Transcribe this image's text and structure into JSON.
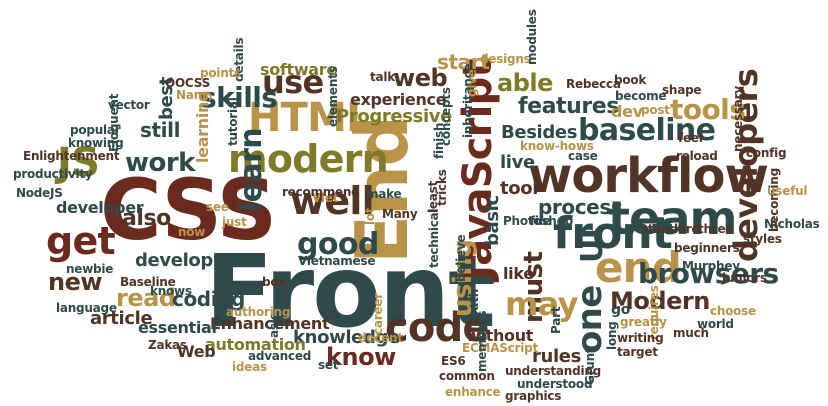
{
  "palette": {
    "red": "#6b2a1e",
    "olive": "#7e7a28",
    "teal": "#2e4a4b",
    "gold": "#b89348",
    "brown": "#523426"
  },
  "words": [
    {
      "text": "CSS",
      "color": "#6b2a1e",
      "vertical": false
    },
    {
      "text": "Front",
      "color": "#2e4a4b",
      "vertical": false
    },
    {
      "text": "End",
      "color": "#b89348",
      "vertical": true
    },
    {
      "text": "workflow",
      "color": "#523426",
      "vertical": false
    },
    {
      "text": "JavaScript",
      "color": "#6b2a1e",
      "vertical": true
    },
    {
      "text": "team",
      "color": "#2e4a4b",
      "vertical": false
    },
    {
      "text": "front",
      "color": "#2e4a4b",
      "vertical": false
    },
    {
      "text": "end",
      "color": "#b89348",
      "vertical": false
    },
    {
      "text": "baseline",
      "color": "#2e4a4b",
      "vertical": false
    },
    {
      "text": "modern",
      "color": "#7e7a28",
      "vertical": false
    },
    {
      "text": "HTML",
      "color": "#b89348",
      "vertical": false
    },
    {
      "text": "developers",
      "color": "#523426",
      "vertical": true
    },
    {
      "text": "JS",
      "color": "#7e7a28",
      "vertical": false
    },
    {
      "text": "well",
      "color": "#523426",
      "vertical": false
    },
    {
      "text": "get",
      "color": "#6b2a1e",
      "vertical": false
    },
    {
      "text": "code",
      "color": "#523426",
      "vertical": false
    },
    {
      "text": "one",
      "color": "#2e4a4b",
      "vertical": true
    },
    {
      "text": "must",
      "color": "#523426",
      "vertical": true
    },
    {
      "text": "may",
      "color": "#b89348",
      "vertical": false
    },
    {
      "text": "good",
      "color": "#2e4a4b",
      "vertical": false
    },
    {
      "text": "browsers",
      "color": "#2e4a4b",
      "vertical": false
    },
    {
      "text": "tools",
      "color": "#b89348",
      "vertical": false
    },
    {
      "text": "learn",
      "color": "#2e4a4b",
      "vertical": true
    },
    {
      "text": "use",
      "color": "#523426",
      "vertical": false
    },
    {
      "text": "skills",
      "color": "#2e4a4b",
      "vertical": false
    },
    {
      "text": "work",
      "color": "#2e4a4b",
      "vertical": false
    },
    {
      "text": "using",
      "color": "#b89348",
      "vertical": true
    },
    {
      "text": "UI",
      "color": "#2e4a4b",
      "vertical": true
    },
    {
      "text": "Modern",
      "color": "#523426",
      "vertical": false
    },
    {
      "text": "development",
      "color": "#2e4a4b",
      "vertical": false
    },
    {
      "text": "read",
      "color": "#b89348",
      "vertical": false
    },
    {
      "text": "new",
      "color": "#523426",
      "vertical": false
    },
    {
      "text": "also",
      "color": "#523426",
      "vertical": false
    },
    {
      "text": "coding",
      "color": "#2e4a4b",
      "vertical": false
    },
    {
      "text": "features",
      "color": "#2e4a4b",
      "vertical": false
    },
    {
      "text": "Progressive",
      "color": "#7e7a28",
      "vertical": false
    },
    {
      "text": "able",
      "color": "#7e7a28",
      "vertical": false
    },
    {
      "text": "web",
      "color": "#523426",
      "vertical": false
    },
    {
      "text": "experience",
      "color": "#523426",
      "vertical": false
    },
    {
      "text": "software",
      "color": "#7e7a28",
      "vertical": false
    },
    {
      "text": "know",
      "color": "#6b2a1e",
      "vertical": false
    },
    {
      "text": "knowledge",
      "color": "#2e4a4b",
      "vertical": false
    },
    {
      "text": "Enhancement",
      "color": "#523426",
      "vertical": false
    },
    {
      "text": "essential",
      "color": "#2e4a4b",
      "vertical": false
    },
    {
      "text": "automation",
      "color": "#7e7a28",
      "vertical": false
    },
    {
      "text": "article",
      "color": "#523426",
      "vertical": false
    },
    {
      "text": "Web",
      "color": "#523426",
      "vertical": false
    },
    {
      "text": "still",
      "color": "#2e4a4b",
      "vertical": false
    },
    {
      "text": "rules",
      "color": "#523426",
      "vertical": false
    },
    {
      "text": "without",
      "color": "#523426",
      "vertical": false
    },
    {
      "text": "process",
      "color": "#2e4a4b",
      "vertical": false
    },
    {
      "text": "Besides",
      "color": "#2e4a4b",
      "vertical": false
    },
    {
      "text": "developer",
      "color": "#2e4a4b",
      "vertical": false
    },
    {
      "text": "start",
      "color": "#b89348",
      "vertical": false
    },
    {
      "text": "best",
      "color": "#2e4a4b",
      "vertical": true
    },
    {
      "text": "learning",
      "color": "#b89348",
      "vertical": true
    },
    {
      "text": "tool",
      "color": "#523426",
      "vertical": false
    },
    {
      "text": "live",
      "color": "#2e4a4b",
      "vertical": false
    },
    {
      "text": "basic",
      "color": "#2e4a4b",
      "vertical": true
    },
    {
      "text": "like",
      "color": "#523426",
      "vertical": false
    },
    {
      "text": "dev",
      "color": "#b89348",
      "vertical": false
    },
    {
      "text": "standard",
      "color": "#523426",
      "vertical": false
    },
    {
      "text": "three",
      "color": "#523426",
      "vertical": false
    },
    {
      "text": "go",
      "color": "#2e4a4b",
      "vertical": false
    },
    {
      "text": "beginners",
      "color": "#523426",
      "vertical": false
    },
    {
      "text": "Murphey",
      "color": "#2e4a4b",
      "vertical": false
    },
    {
      "text": "styles",
      "color": "#523426",
      "vertical": false
    },
    {
      "text": "Nicholas",
      "color": "#2e4a4b",
      "vertical": false
    },
    {
      "text": "juniors",
      "color": "#523426",
      "vertical": false
    },
    {
      "text": "world",
      "color": "#2e4a4b",
      "vertical": false
    },
    {
      "text": "choose",
      "color": "#b89348",
      "vertical": false
    },
    {
      "text": "much",
      "color": "#523426",
      "vertical": false
    },
    {
      "text": "greatly",
      "color": "#b89348",
      "vertical": false
    },
    {
      "text": "requires",
      "color": "#b89348",
      "vertical": true
    },
    {
      "text": "writing",
      "color": "#523426",
      "vertical": false
    },
    {
      "text": "target",
      "color": "#523426",
      "vertical": false
    },
    {
      "text": "long",
      "color": "#2e4a4b",
      "vertical": true
    },
    {
      "text": "understanding",
      "color": "#523426",
      "vertical": false
    },
    {
      "text": "ECMAScript",
      "color": "#b89348",
      "vertical": false
    },
    {
      "text": "ES6",
      "color": "#523426",
      "vertical": false
    },
    {
      "text": "understood",
      "color": "#2e4a4b",
      "vertical": false
    },
    {
      "text": "common",
      "color": "#523426",
      "vertical": false
    },
    {
      "text": "enhance",
      "color": "#b89348",
      "vertical": false
    },
    {
      "text": "graphics",
      "color": "#523426",
      "vertical": false
    },
    {
      "text": "Grunt",
      "color": "#2e4a4b",
      "vertical": true
    },
    {
      "text": "Part",
      "color": "#2e4a4b",
      "vertical": true
    },
    {
      "text": "members",
      "color": "#2e4a4b",
      "vertical": true
    },
    {
      "text": "path",
      "color": "#2e4a4b",
      "vertical": true
    },
    {
      "text": "believe",
      "color": "#2e4a4b",
      "vertical": true
    },
    {
      "text": "career",
      "color": "#b89348",
      "vertical": true
    },
    {
      "text": "decent",
      "color": "#b89348",
      "vertical": false
    },
    {
      "text": "set",
      "color": "#2e4a4b",
      "vertical": false
    },
    {
      "text": "ideas",
      "color": "#b89348",
      "vertical": false
    },
    {
      "text": "advanced",
      "color": "#2e4a4b",
      "vertical": false
    },
    {
      "text": "Zakas",
      "color": "#523426",
      "vertical": false
    },
    {
      "text": "knows",
      "color": "#2e4a4b",
      "vertical": false
    },
    {
      "text": "Baseline",
      "color": "#523426",
      "vertical": false
    },
    {
      "text": "newbie",
      "color": "#2e4a4b",
      "vertical": false
    },
    {
      "text": "language",
      "color": "#2e4a4b",
      "vertical": false
    },
    {
      "text": "authoring",
      "color": "#b89348",
      "vertical": false
    },
    {
      "text": "Vietnamese",
      "color": "#2e4a4b",
      "vertical": false
    },
    {
      "text": "box",
      "color": "#523426",
      "vertical": false
    },
    {
      "text": "ask",
      "color": "#2e4a4b",
      "vertical": true
    },
    {
      "text": "now",
      "color": "#b89348",
      "vertical": false
    },
    {
      "text": "see",
      "color": "#b89348",
      "vertical": false
    },
    {
      "text": "just",
      "color": "#b89348",
      "vertical": false
    },
    {
      "text": "Viet",
      "color": "#b89348",
      "vertical": false
    },
    {
      "text": "recommend",
      "color": "#523426",
      "vertical": false
    },
    {
      "text": "make",
      "color": "#2e4a4b",
      "vertical": false
    },
    {
      "text": "lot",
      "color": "#b89348",
      "vertical": true
    },
    {
      "text": "Many",
      "color": "#523426",
      "vertical": false
    },
    {
      "text": "technical",
      "color": "#2e4a4b",
      "vertical": true
    },
    {
      "text": "least",
      "color": "#523426",
      "vertical": true
    },
    {
      "text": "tricks",
      "color": "#523426",
      "vertical": true
    },
    {
      "text": "concepts",
      "color": "#2e4a4b",
      "vertical": true
    },
    {
      "text": "finish",
      "color": "#2e4a4b",
      "vertical": true
    },
    {
      "text": "inheritance",
      "color": "#2e4a4b",
      "vertical": true
    },
    {
      "text": "Photoshop",
      "color": "#2e4a4b",
      "vertical": false
    },
    {
      "text": "file",
      "color": "#2e4a4b",
      "vertical": false
    },
    {
      "text": "case",
      "color": "#2e4a4b",
      "vertical": false
    },
    {
      "text": "know-hows",
      "color": "#b89348",
      "vertical": false
    },
    {
      "text": "feel",
      "color": "#523426",
      "vertical": false
    },
    {
      "text": "reload",
      "color": "#523426",
      "vertical": false
    },
    {
      "text": "becoming",
      "color": "#523426",
      "vertical": true
    },
    {
      "text": "config",
      "color": "#523426",
      "vertical": false
    },
    {
      "text": "useful",
      "color": "#b89348",
      "vertical": false
    },
    {
      "text": "post",
      "color": "#b89348",
      "vertical": false
    },
    {
      "text": "become",
      "color": "#2e4a4b",
      "vertical": false
    },
    {
      "text": "Rebecca",
      "color": "#523426",
      "vertical": false
    },
    {
      "text": "book",
      "color": "#523426",
      "vertical": false
    },
    {
      "text": "shape",
      "color": "#523426",
      "vertical": false
    },
    {
      "text": "necessary",
      "color": "#523426",
      "vertical": true
    },
    {
      "text": "give",
      "color": "#b89348",
      "vertical": true
    },
    {
      "text": "talk",
      "color": "#523426",
      "vertical": false
    },
    {
      "text": "designs",
      "color": "#b89348",
      "vertical": false
    },
    {
      "text": "modules",
      "color": "#2e4a4b",
      "vertical": true
    },
    {
      "text": "elements",
      "color": "#2e4a4b",
      "vertical": true
    },
    {
      "text": "details",
      "color": "#2e4a4b",
      "vertical": true
    },
    {
      "text": "tutorial",
      "color": "#2e4a4b",
      "vertical": true
    },
    {
      "text": "points",
      "color": "#b89348",
      "vertical": false
    },
    {
      "text": "OOCSS",
      "color": "#523426",
      "vertical": false
    },
    {
      "text": "Nam",
      "color": "#b89348",
      "vertical": false
    },
    {
      "text": "vector",
      "color": "#2e4a4b",
      "vertical": false
    },
    {
      "text": "popular",
      "color": "#2e4a4b",
      "vertical": false
    },
    {
      "text": "knowing",
      "color": "#2e4a4b",
      "vertical": false
    },
    {
      "text": "Eloquent",
      "color": "#2e4a4b",
      "vertical": true
    },
    {
      "text": "Enlightenment",
      "color": "#523426",
      "vertical": false
    },
    {
      "text": "productivity",
      "color": "#2e4a4b",
      "vertical": false
    },
    {
      "text": "NodeJS",
      "color": "#2e4a4b",
      "vertical": false
    }
  ]
}
